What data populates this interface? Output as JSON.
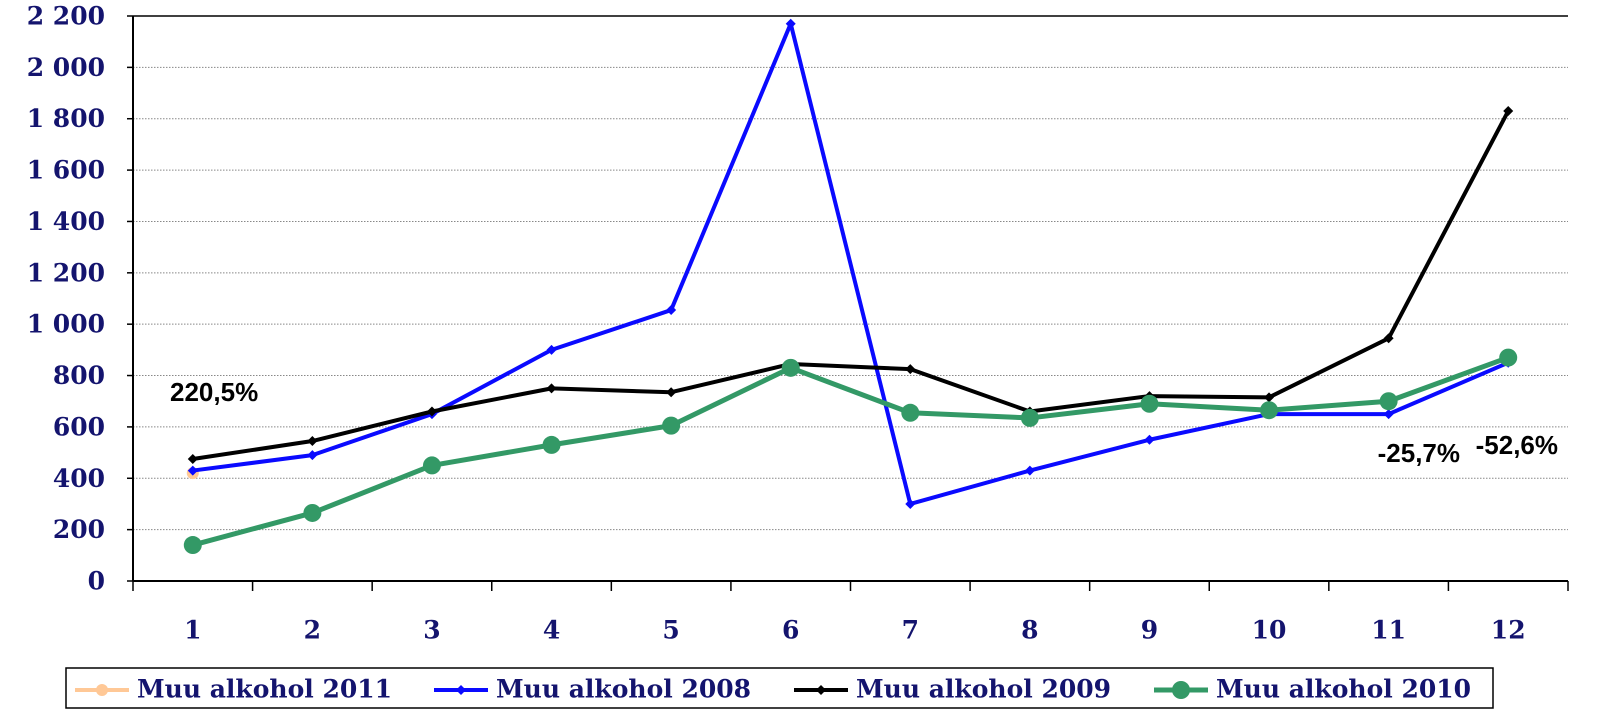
{
  "chart_data": {
    "type": "line",
    "categories": [
      "1",
      "2",
      "3",
      "4",
      "5",
      "6",
      "7",
      "8",
      "9",
      "10",
      "11",
      "12"
    ],
    "series": [
      {
        "name": "Muu alkohol 2011",
        "color": "#ffc896",
        "marker": "circle",
        "values": [
          420,
          null,
          null,
          null,
          null,
          null,
          null,
          null,
          null,
          null,
          null,
          null
        ]
      },
      {
        "name": "Muu alkohol 2008",
        "color": "#0a0aff",
        "marker": "diamond",
        "values": [
          430,
          490,
          650,
          900,
          1055,
          2170,
          300,
          430,
          550,
          650,
          650,
          850
        ]
      },
      {
        "name": "Muu alkohol 2009",
        "color": "#000000",
        "marker": "diamond",
        "values": [
          475,
          545,
          660,
          750,
          735,
          845,
          825,
          660,
          720,
          715,
          945,
          1830
        ]
      },
      {
        "name": "Muu alkohol 2010",
        "color": "#339966",
        "marker": "circle",
        "values": [
          140,
          265,
          450,
          530,
          605,
          830,
          655,
          635,
          690,
          665,
          700,
          870
        ]
      }
    ],
    "ylim": [
      0,
      2200
    ],
    "yticks": [
      0,
      200,
      400,
      600,
      800,
      {
        "value": 1000,
        "label": "1 000"
      },
      {
        "value": 1200,
        "label": "1 200"
      },
      {
        "value": 1400,
        "label": "1 400"
      },
      {
        "value": 1600,
        "label": "1 600"
      },
      {
        "value": 1800,
        "label": "1 800"
      },
      {
        "value": 2000,
        "label": "2 000"
      },
      {
        "value": 2200,
        "label": "2 200"
      }
    ],
    "grid": true,
    "legend": "bottom",
    "annotations": [
      "220,5%",
      "-25,7%",
      "-52,6%"
    ]
  }
}
